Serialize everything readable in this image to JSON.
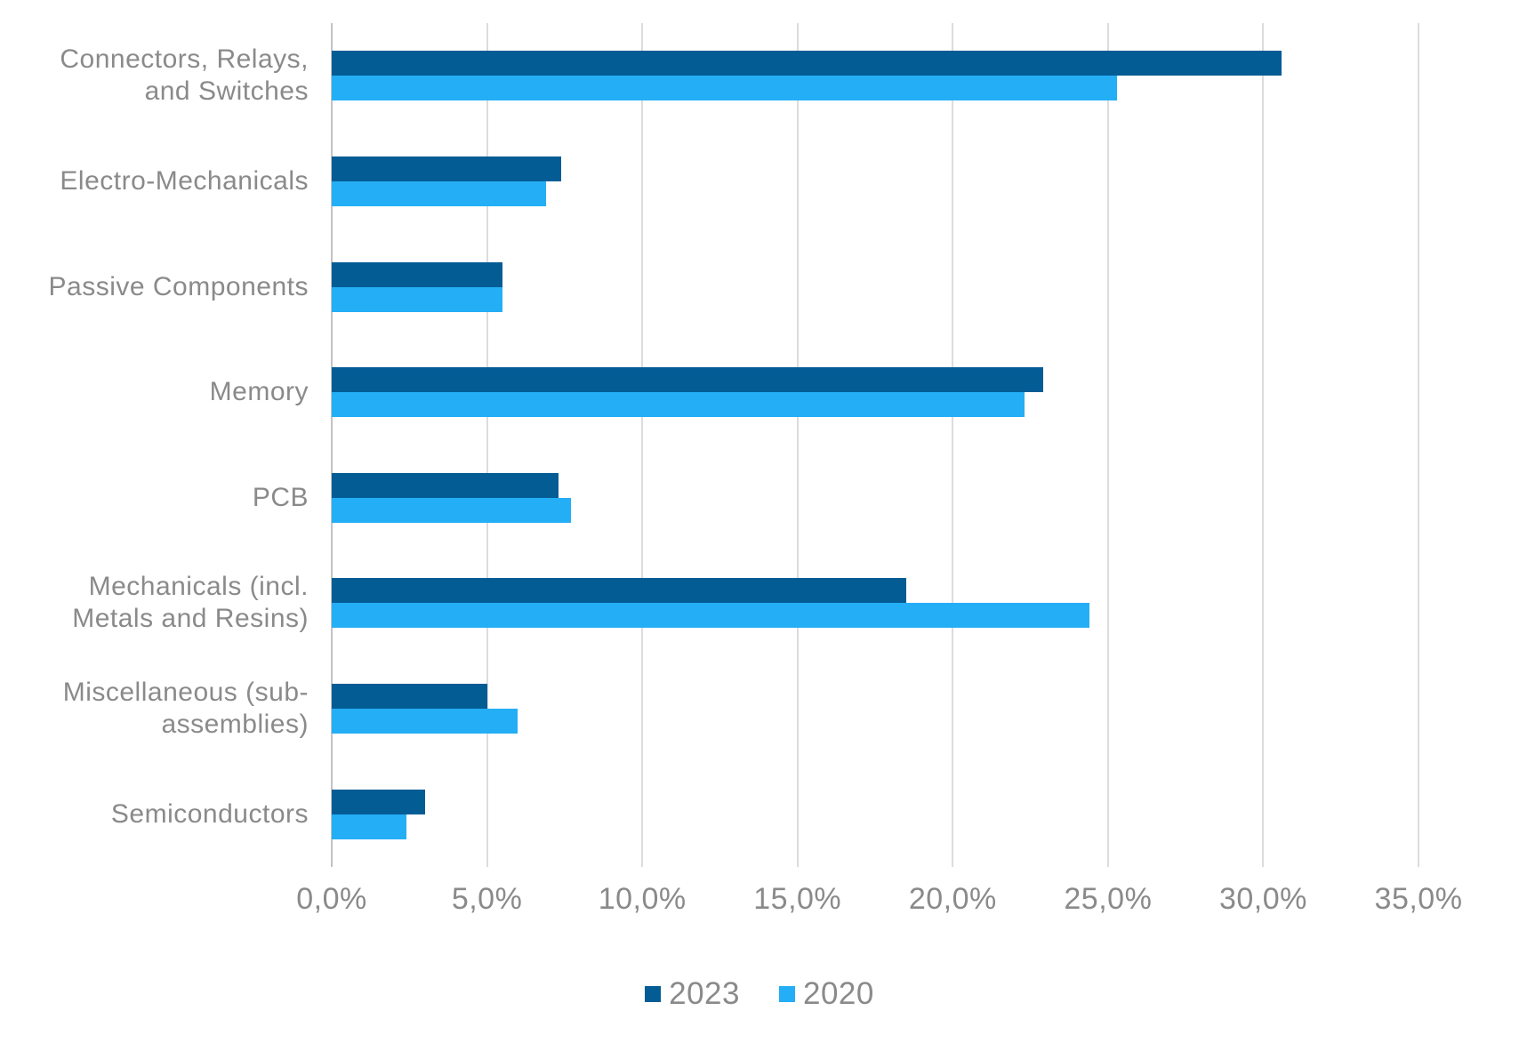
{
  "page": {
    "background": "#ffffff"
  },
  "chart_data": {
    "type": "bar",
    "orientation": "horizontal",
    "title": "",
    "categories": [
      "Connectors, Relays, and Switches",
      "Electro-Mechanicals",
      "Passive Components",
      "Memory",
      "PCB",
      "Mechanicals (incl. Metals and Resins)",
      "Miscellaneous (sub-assemblies)",
      "Semiconductors"
    ],
    "display_labels": [
      "Connectors, Relays,\nand Switches",
      "Electro-Mechanicals",
      "Passive Components",
      "Memory",
      "PCB",
      "Mechanicals (incl.\nMetals and Resins)",
      "Miscellaneous (sub-\nassemblies)",
      "Semiconductors"
    ],
    "series": [
      {
        "name": "2023",
        "color": "#045C95",
        "values": [
          30.6,
          7.4,
          5.5,
          22.9,
          7.3,
          18.5,
          5.0,
          3.0
        ]
      },
      {
        "name": "2020",
        "color": "#24AEF6",
        "values": [
          25.3,
          6.9,
          5.5,
          22.3,
          7.7,
          24.4,
          6.0,
          2.4
        ]
      }
    ],
    "xlim": [
      0,
      35
    ],
    "x_ticks": [
      0,
      5,
      10,
      15,
      20,
      25,
      30,
      35
    ],
    "x_tick_labels": [
      "0,0%",
      "5,0%",
      "10,0%",
      "15,0%",
      "20,0%",
      "25,0%",
      "30,0%",
      "35,0%"
    ],
    "grid": "vertical-gridlines-on",
    "legend_position": "bottom-center"
  },
  "styles": {
    "gridline_color": "#DCDCDC",
    "axis_line_color": "#C3C3C3",
    "category_label_color": "#8A8A8A",
    "tick_label_color": "#8A8A8A",
    "legend_text_color": "#8A8A8A"
  }
}
